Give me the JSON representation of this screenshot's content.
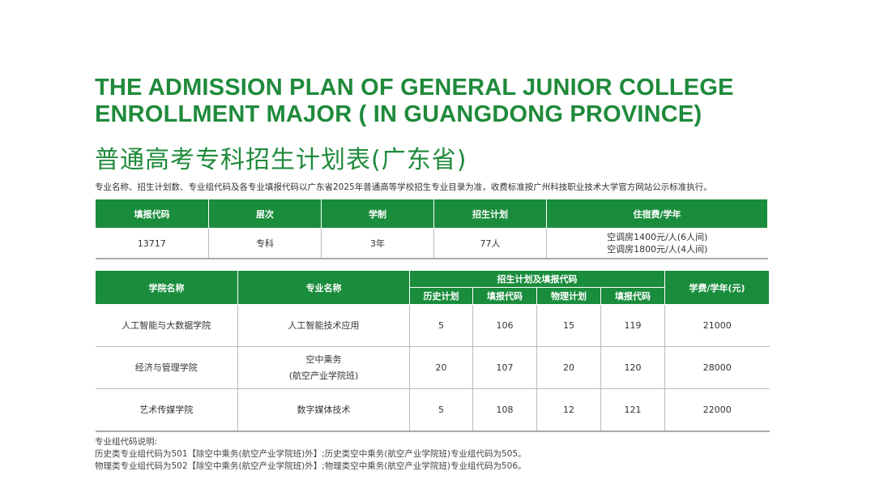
{
  "title_en": [
    "THE ADMISSION PLAN OF GENERAL JUNIOR COLLEGE",
    "ENROLLMENT MAJOR ( IN GUANGDONG PROVINCE)"
  ],
  "title_cn": "普通高考专科招生计划表(广东省)",
  "note": "专业名称、招生计划数、专业组代码及各专业填报代码以广东省2025年普通高等学校招生专业目录为准，收费标准按广州科技职业技术大学官方网站公示标准执行。",
  "table1": {
    "headers": [
      "填报代码",
      "层次",
      "学制",
      "招生计划",
      "住宿费/学年"
    ],
    "row": [
      "13717",
      "专科",
      "3年",
      "77人"
    ],
    "dorm": [
      "空调房1400元/人(6人间)",
      "空调房1800元/人(4人间)"
    ]
  },
  "table2": {
    "headers": {
      "college": "学院名称",
      "major": "专业名称",
      "group": "招生计划及填报代码",
      "history_plan": "历史计划",
      "history_code": "填报代码",
      "physics_plan": "物理计划",
      "physics_code": "填报代码",
      "fee": "学费/学年(元)"
    },
    "rows": [
      {
        "college": "人工智能与大数据学院",
        "major": "人工智能技术应用",
        "major2": "",
        "hp": "5",
        "hc": "106",
        "pp": "15",
        "pc": "119",
        "fee": "21000"
      },
      {
        "college": "经济与管理学院",
        "major": "空中乘务",
        "major2": "(航空产业学院班)",
        "hp": "20",
        "hc": "107",
        "pp": "20",
        "pc": "120",
        "fee": "28000"
      },
      {
        "college": "艺术传媒学院",
        "major": "数字媒体技术",
        "major2": "",
        "hp": "5",
        "hc": "108",
        "pp": "12",
        "pc": "121",
        "fee": "22000"
      }
    ]
  },
  "footnote": [
    "专业组代码说明:",
    "历史类专业组代码为501【除空中乘务(航空产业学院班)外】;历史类空中乘务(航空产业学院班)专业组代码为505。",
    "物理类专业组代码为502【除空中乘务(航空产业学院班)外】;物理类空中乘务(航空产业学院班)专业组代码为506。"
  ],
  "colors": {
    "green": "#1a8d3c"
  }
}
